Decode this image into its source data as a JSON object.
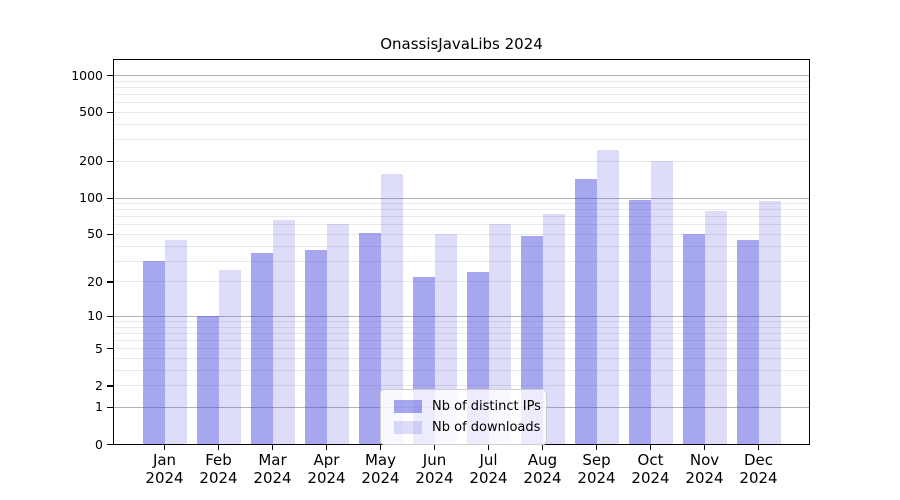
{
  "chart_data": {
    "type": "bar",
    "title": "OnassisJavaLibs 2024",
    "x_categories": [
      "Jan",
      "Feb",
      "Mar",
      "Apr",
      "May",
      "Jun",
      "Jul",
      "Aug",
      "Sep",
      "Oct",
      "Nov",
      "Dec"
    ],
    "x_year_label": "2024",
    "yscale": "log1p",
    "y_ticks": [
      0,
      1,
      2,
      5,
      10,
      20,
      50,
      100,
      200,
      500,
      1000
    ],
    "ylim": [
      0,
      1320
    ],
    "grid": {
      "major": true,
      "minor": true,
      "major_color": "#b4b4b4",
      "minor_color": "#e9e9e9"
    },
    "legend_position": "lower-center",
    "series": [
      {
        "name": "Nb of distinct IPs",
        "fill": "rgba(68,68,221,0.47)",
        "approx_hex": "#a8a8ee",
        "values": [
          30,
          10,
          35,
          37,
          51,
          22,
          24,
          48,
          142,
          95,
          50,
          45
        ]
      },
      {
        "name": "Nb of downloads",
        "fill": "rgba(68,68,221,0.18)",
        "approx_hex": "#dcdcf8",
        "values": [
          45,
          25,
          65,
          60,
          155,
          50,
          60,
          73,
          245,
          200,
          78,
          93
        ]
      }
    ]
  }
}
